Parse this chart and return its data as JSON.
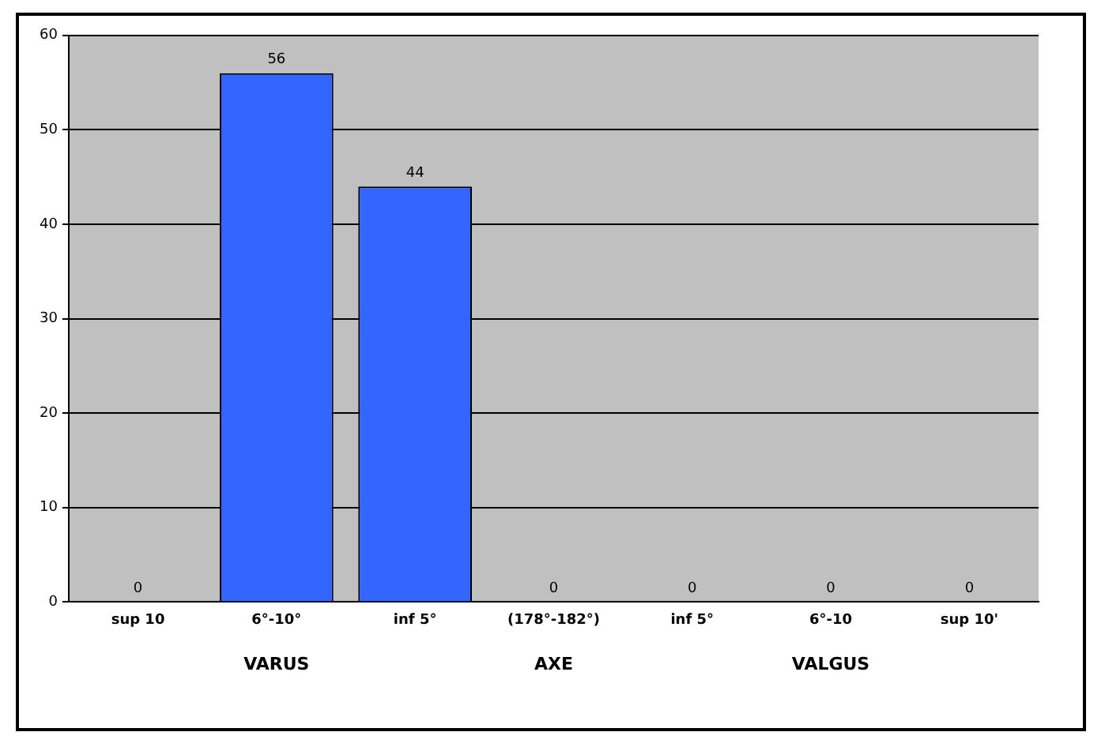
{
  "chart_data": {
    "type": "bar",
    "categories": [
      "sup 10",
      "6°-10°",
      "inf 5°",
      "(178°-182°)",
      "inf 5°",
      "6°-10",
      "sup 10'"
    ],
    "values": [
      0,
      56,
      44,
      0,
      0,
      0,
      0
    ],
    "color": "#3366ff",
    "ylim": [
      0,
      60
    ],
    "yticks": [
      0,
      10,
      20,
      30,
      40,
      50,
      60
    ],
    "grid": "y",
    "legend": false,
    "data_labels": true,
    "annotations": [
      "VARUS",
      "AXE",
      "VALGUS"
    ]
  }
}
